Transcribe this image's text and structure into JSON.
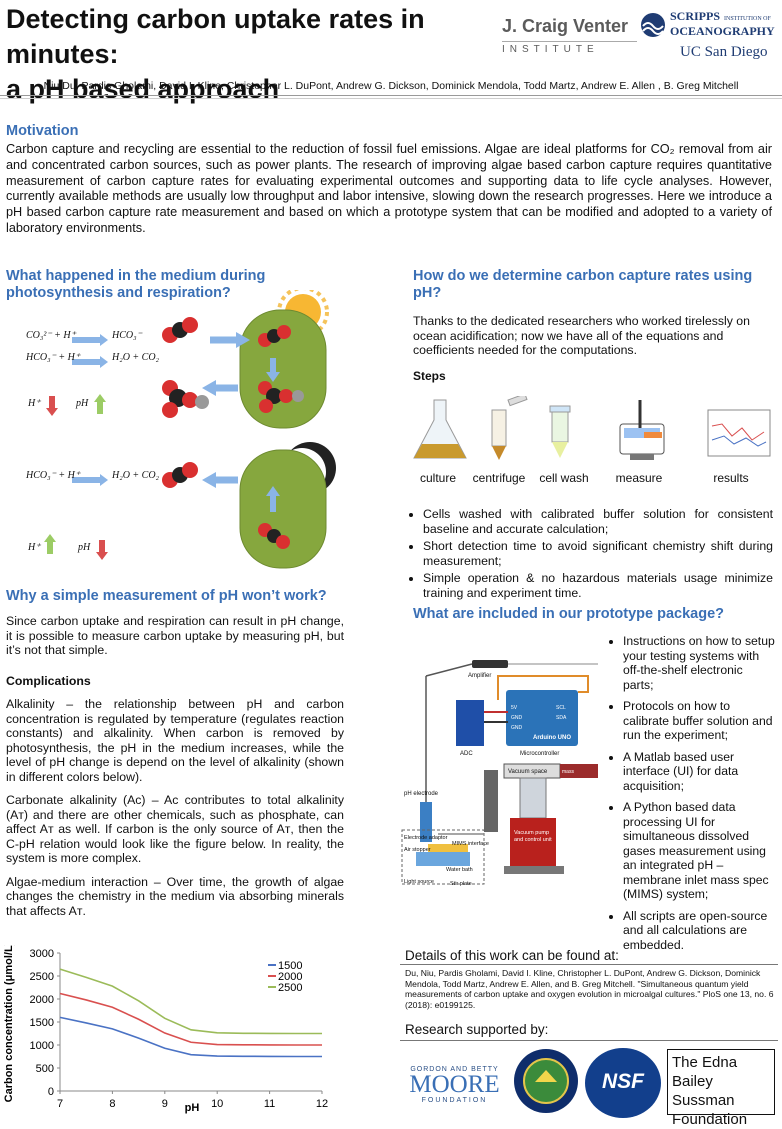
{
  "header": {
    "title_line1": "Detecting carbon uptake rates in minutes:",
    "title_line2": "a pH based approach",
    "authors": "Niu Du, Pardis Gholami, David I. Kline, Christopher L. DuPont, Andrew G. Dickson, Dominick Mendola, Todd Martz, Andrew E. Allen , B. Greg Mitchell",
    "logo_jcv_name": "J. Craig Venter",
    "logo_jcv_sub": "INSTITUTE",
    "logo_scripps_1": "SCRIPPS",
    "logo_scripps_2": "INSTITUTION OF",
    "logo_scripps_3": "OCEANOGRAPHY",
    "logo_ucsd": "UC San Diego"
  },
  "motivation": {
    "heading": "Motivation",
    "text": "Carbon capture and recycling are essential to the reduction of fossil fuel emissions. Algae are ideal platforms for CO₂ removal from air and concentrated carbon sources, such as power plants. The research of improving algae based carbon capture requires quantitative measurement of carbon capture rates for evaluating experimental outcomes and supporting data to life cycle analyses. However, currently available methods are usually low throughput and labor intensive, slowing down the research progresses. Here we introduce a pH based carbon capture rate measurement and based on which a prototype system that can be modified and adopted to a variety of laboratory environments."
  },
  "medium": {
    "heading": "What happened in the medium during photosynthesis and respiration?",
    "eq1_left": "CO₃²⁻ + H⁺",
    "eq1_right": "HCO₃⁻",
    "eq2_left": "HCO₃⁻ + H⁺",
    "eq2_right": "H₂O + CO₂",
    "eq3_left": "HCO₃⁻ + H⁺",
    "eq3_right": "H₂O + CO₂",
    "h_label": "H⁺",
    "ph_label": "pH",
    "atom_c": "C",
    "atom_o": "O",
    "atom_h": "H"
  },
  "simple": {
    "heading": "Why a simple measurement of pH won’t work?",
    "intro": "Since carbon uptake and respiration can result in pH change, it is possible to measure carbon uptake by measuring pH, but it’s not that simple.",
    "complications_heading": "Complications",
    "p1": "Alkalinity – the relationship between pH and carbon concentration is regulated by temperature (regulates reaction constants) and alkalinity. When carbon is removed by photosynthesis, the pH in the medium increases, while the level of pH change is depend on the level of alkalinity (shown in different colors below).",
    "p2": "Carbonate alkalinity (Aᴄ) – Aᴄ contributes to total alkalinity (Aᴛ) and there are other chemicals, such as phosphate, can affect Aᴛ as well. If carbon is the only source of Aᴛ, then the C-pH relation would look like the figure below. In reality, the system is more complex.",
    "p3": "Algae-medium interaction – Over time, the growth of algae changes the chemistry in the medium via absorbing minerals that affects Aᴛ."
  },
  "chart_data": {
    "type": "line",
    "xlabel": "pH",
    "ylabel": "Carbon concentration (μmol/L)",
    "xlim": [
      7,
      12
    ],
    "ylim": [
      0,
      3000
    ],
    "xticks": [
      "7",
      "8",
      "9",
      "10",
      "11",
      "12"
    ],
    "yticks": [
      "0",
      "500",
      "1000",
      "1500",
      "2000",
      "2500",
      "3000"
    ],
    "x": [
      7,
      7.5,
      8,
      8.5,
      9,
      9.5,
      10,
      10.5,
      11,
      11.5,
      12
    ],
    "series": [
      {
        "name": "1500",
        "color": "#4a72c4",
        "values": [
          1600,
          1480,
          1350,
          1150,
          930,
          790,
          760,
          755,
          752,
          750,
          750
        ]
      },
      {
        "name": "2000",
        "color": "#d9504f",
        "values": [
          2120,
          1980,
          1820,
          1560,
          1260,
          1060,
          1010,
          1004,
          1002,
          1000,
          1000
        ]
      },
      {
        "name": "2500",
        "color": "#9bbb59",
        "values": [
          2650,
          2470,
          2280,
          1960,
          1580,
          1330,
          1265,
          1255,
          1252,
          1250,
          1250
        ]
      }
    ],
    "legend_position": "top-right",
    "grid": false
  },
  "howto": {
    "heading": "How do we determine carbon capture rates using pH?",
    "intro": "Thanks to the dedicated researchers who worked tirelessly on ocean acidification; now we have all of the equations and coefficients needed for the computations.",
    "steps_heading": "Steps",
    "steps": [
      "culture",
      "centrifuge",
      "cell wash",
      "measure",
      "results"
    ],
    "bullets": [
      "Cells washed with calibrated buffer solution for consistent baseline and accurate calculation;",
      "Short detection time to avoid significant chemistry shift during measurement;",
      "Simple operation & no hazardous materials usage minimize training and experiment time."
    ]
  },
  "package": {
    "heading": "What are included in our prototype package?",
    "diagram_labels": {
      "amplifier": "Amplifier",
      "adc": "ADC",
      "arduino": "Arduino UNO",
      "microcontroller": "Microcontroller",
      "ph_electrode": "pH electrode",
      "electrode_adaptor": "Electrode adaptor",
      "air_stopper": "Air stopper",
      "mims_interface": "MIMS interface",
      "water_bath": "Water bath",
      "light_source": "Light source",
      "stir_plate": "Stir plate",
      "vacuum_space": "Vacuum space",
      "mass_spectrometer": "mass spectrometer",
      "vacuum_pump": "Vacuum pump and control unit",
      "pin_5v": "5V",
      "pin_gnd1": "GND",
      "pin_gnd2": "GND",
      "pin_scl": "SCL",
      "pin_sda": "SDA"
    },
    "items": [
      "Instructions on how to setup your testing systems with off-the-shelf electronic parts;",
      "Protocols on how to calibrate buffer solution and run the experiment;",
      "A Matlab based user interface (UI) for data acquisition;",
      "A Python based data processing UI for simultaneous dissolved gases measurement using an integrated pH – membrane inlet mass spec (MIMS) system;",
      "All scripts are open-source and all calculations are embedded."
    ]
  },
  "details": {
    "heading": "Details of this work can be found at:",
    "citation": "Du, Niu, Pardis Gholami, David I. Kline, Christopher L. DuPont, Andrew G. Dickson, Dominick Mendola, Todd Martz, Andrew E. Allen, and B. Greg Mitchell. \"Simultaneous quantum yield measurements of carbon uptake and oxygen evolution in microalgal cultures.\" PloS one 13, no. 6 (2018): e0199125."
  },
  "support": {
    "heading": "Research supported by:",
    "moore_1": "GORDON AND BETTY",
    "moore_2": "MOORE",
    "moore_3": "FOUNDATION",
    "doe": "DEPARTMENT OF ENERGY",
    "nsf": "NSF",
    "edna": "The Edna Bailey Sussman Foundation"
  }
}
